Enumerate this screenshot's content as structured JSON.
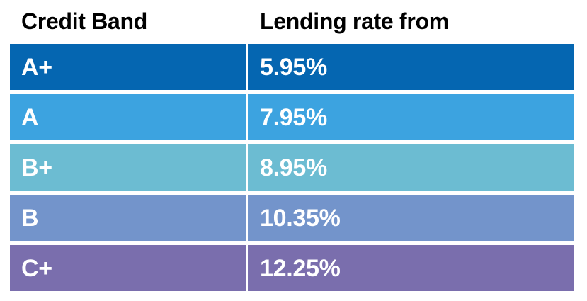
{
  "table": {
    "headers": {
      "band": "Credit Band",
      "rate": "Lending rate from"
    },
    "rows": [
      {
        "band": "A+",
        "rate": "5.95%",
        "color": "#0566b1"
      },
      {
        "band": "A",
        "rate": "7.95%",
        "color": "#3ca3e0"
      },
      {
        "band": "B+",
        "rate": "8.95%",
        "color": "#6cbcd2"
      },
      {
        "band": "B",
        "rate": "10.35%",
        "color": "#7394cb"
      },
      {
        "band": "C+",
        "rate": "12.25%",
        "color": "#7a6ead"
      }
    ]
  }
}
